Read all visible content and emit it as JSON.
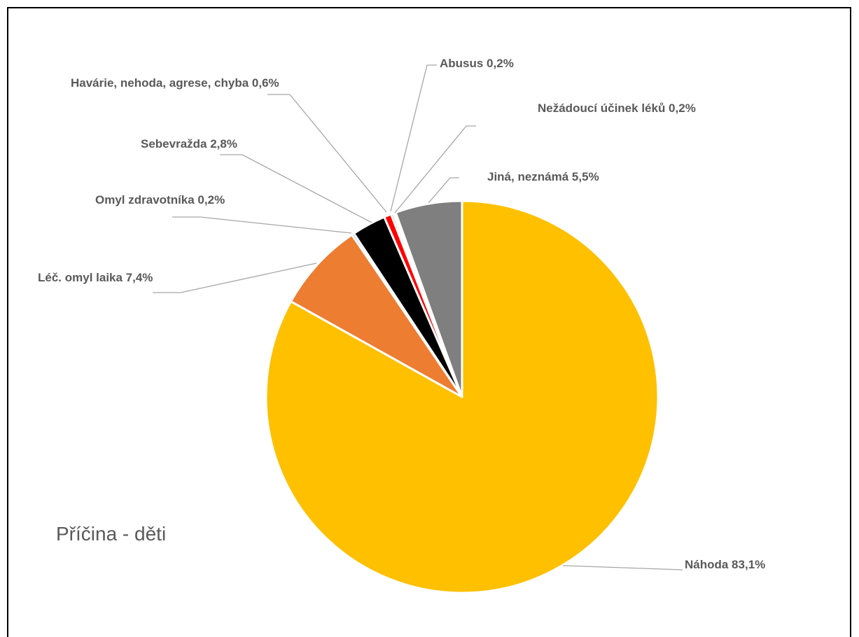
{
  "chart_data": {
    "type": "pie",
    "title": "Příčina - děti",
    "slices": [
      {
        "name": "Náhoda",
        "value": 83.1,
        "label": "Náhoda 83,1%",
        "color": "#FFC000"
      },
      {
        "name": "Léč. omyl laika",
        "value": 7.4,
        "label": "Léč. omyl laika 7,4%",
        "color": "#ED7D31"
      },
      {
        "name": "Omyl zdravotníka",
        "value": 0.2,
        "label": "Omyl zdravotníka 0,2%",
        "color": "#4472C4"
      },
      {
        "name": "Sebevražda",
        "value": 2.8,
        "label": "Sebevražda 2,8%",
        "color": "#000000"
      },
      {
        "name": "Havárie, nehoda, agrese, chyba",
        "value": 0.6,
        "label": "Havárie, nehoda, agrese, chyba 0,6%",
        "color": "#FF0000"
      },
      {
        "name": "Abusus",
        "value": 0.2,
        "label": "Abusus 0,2%",
        "color": "#70AD47"
      },
      {
        "name": "Nežádoucí účinek léků",
        "value": 0.2,
        "label": "Nežádoucí účinek léků 0,2%",
        "color": "#FFFFFF"
      },
      {
        "name": "Jiná, neznámá",
        "value": 5.5,
        "label": "Jiná, neznámá 5,5%",
        "color": "#7F7F7F"
      }
    ],
    "start_position": "12 o'clock",
    "direction": "clockwise",
    "legend": "none",
    "label_color": "#595959",
    "leader_line_color": "#A6A6A6",
    "slice_border_color": "#FFFFFF"
  }
}
